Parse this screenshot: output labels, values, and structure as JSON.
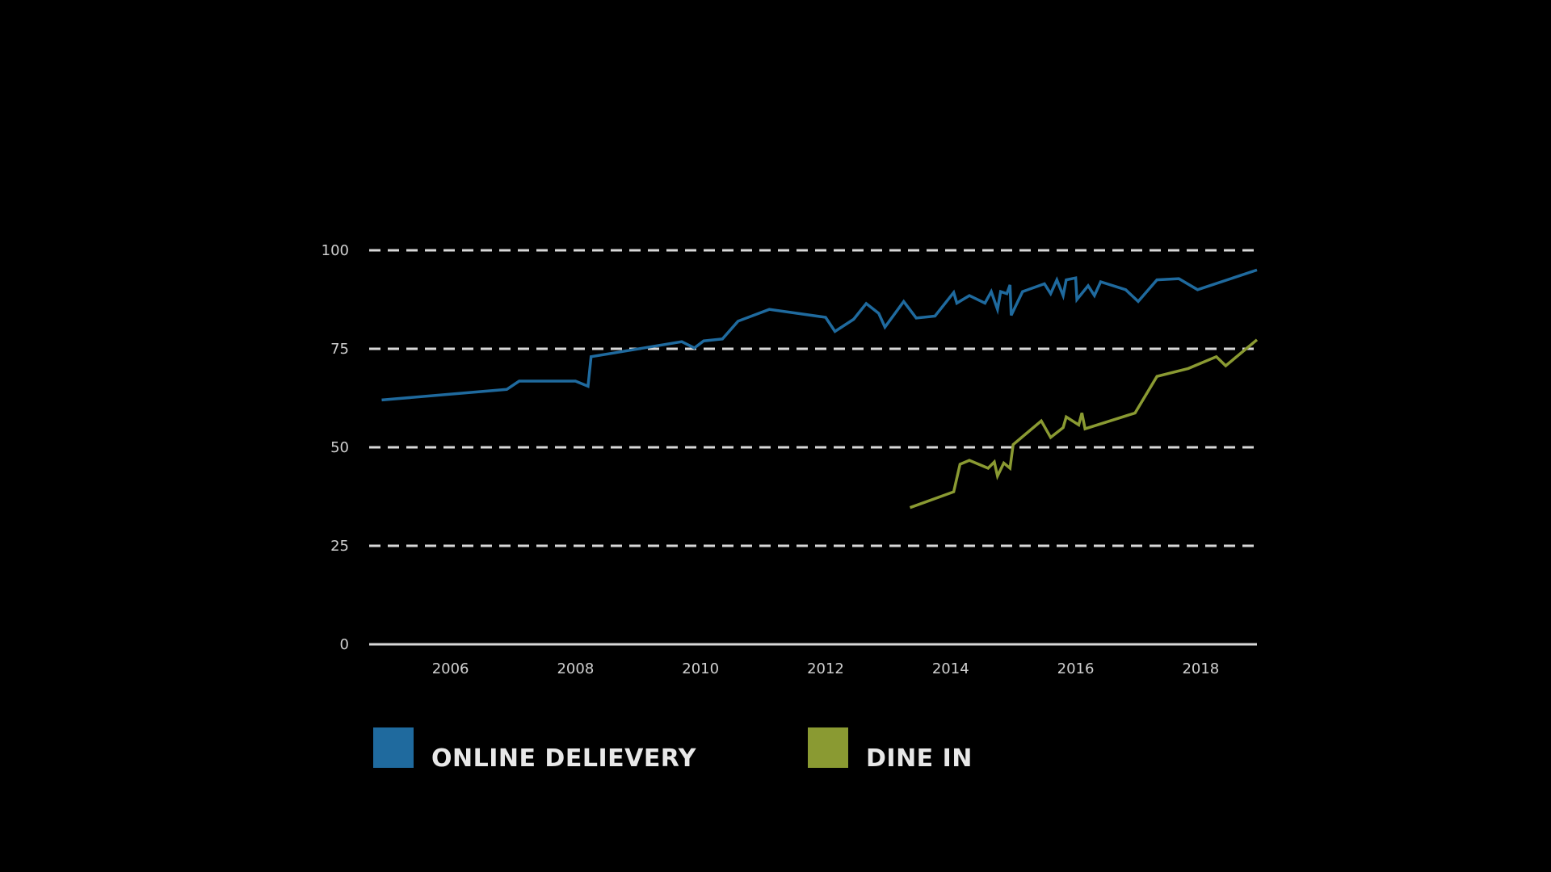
{
  "chart_data": {
    "type": "line",
    "title": "",
    "xlabel": "",
    "ylabel": "",
    "xlim": [
      2004.7,
      2018.9
    ],
    "ylim": [
      0,
      100
    ],
    "x_ticks": [
      2006,
      2008,
      2010,
      2012,
      2014,
      2016,
      2018
    ],
    "y_ticks": [
      0,
      25,
      50,
      75,
      100
    ],
    "grid": "horizontal dashed",
    "legend_position": "bottom",
    "series": [
      {
        "name": "ONLINE DELIEVERY",
        "color": "#1f6a9e",
        "points": [
          [
            2004.9,
            62.0
          ],
          [
            2006.9,
            64.7
          ],
          [
            2007.1,
            66.8
          ],
          [
            2008.0,
            66.8
          ],
          [
            2008.2,
            65.5
          ],
          [
            2008.25,
            73.0
          ],
          [
            2009.7,
            76.8
          ],
          [
            2009.9,
            75.2
          ],
          [
            2010.05,
            77.0
          ],
          [
            2010.35,
            77.5
          ],
          [
            2010.6,
            82.0
          ],
          [
            2011.1,
            85.0
          ],
          [
            2012.0,
            83.0
          ],
          [
            2012.15,
            79.4
          ],
          [
            2012.45,
            82.5
          ],
          [
            2012.65,
            86.5
          ],
          [
            2012.85,
            84.0
          ],
          [
            2012.95,
            80.5
          ],
          [
            2013.25,
            87.0
          ],
          [
            2013.45,
            82.8
          ],
          [
            2013.75,
            83.3
          ],
          [
            2014.05,
            89.3
          ],
          [
            2014.1,
            86.6
          ],
          [
            2014.3,
            88.5
          ],
          [
            2014.55,
            86.6
          ],
          [
            2014.65,
            89.5
          ],
          [
            2014.75,
            85.0
          ],
          [
            2014.8,
            89.5
          ],
          [
            2014.9,
            89.0
          ],
          [
            2014.95,
            91.2
          ],
          [
            2014.97,
            83.5
          ],
          [
            2015.15,
            89.5
          ],
          [
            2015.5,
            91.5
          ],
          [
            2015.6,
            89.0
          ],
          [
            2015.7,
            92.5
          ],
          [
            2015.8,
            88.5
          ],
          [
            2015.85,
            92.5
          ],
          [
            2016.0,
            93.0
          ],
          [
            2016.02,
            87.5
          ],
          [
            2016.2,
            91.0
          ],
          [
            2016.3,
            88.5
          ],
          [
            2016.4,
            92.0
          ],
          [
            2016.8,
            90.0
          ],
          [
            2017.0,
            87.0
          ],
          [
            2017.3,
            92.5
          ],
          [
            2017.65,
            92.8
          ],
          [
            2017.95,
            90.0
          ],
          [
            2018.9,
            95.0
          ]
        ]
      },
      {
        "name": "DINE IN",
        "color": "#8a9a32",
        "points": [
          [
            2013.35,
            34.7
          ],
          [
            2014.05,
            38.7
          ],
          [
            2014.15,
            45.7
          ],
          [
            2014.3,
            46.7
          ],
          [
            2014.6,
            44.7
          ],
          [
            2014.7,
            46.3
          ],
          [
            2014.75,
            42.7
          ],
          [
            2014.85,
            46.0
          ],
          [
            2014.95,
            44.7
          ],
          [
            2015.0,
            50.7
          ],
          [
            2015.45,
            56.7
          ],
          [
            2015.6,
            52.5
          ],
          [
            2015.8,
            55.0
          ],
          [
            2015.85,
            57.7
          ],
          [
            2016.05,
            55.7
          ],
          [
            2016.1,
            58.7
          ],
          [
            2016.15,
            54.7
          ],
          [
            2016.95,
            58.7
          ],
          [
            2017.3,
            68.0
          ],
          [
            2017.8,
            70.0
          ],
          [
            2018.25,
            73.0
          ],
          [
            2018.4,
            70.7
          ],
          [
            2018.9,
            77.3
          ]
        ]
      }
    ]
  }
}
